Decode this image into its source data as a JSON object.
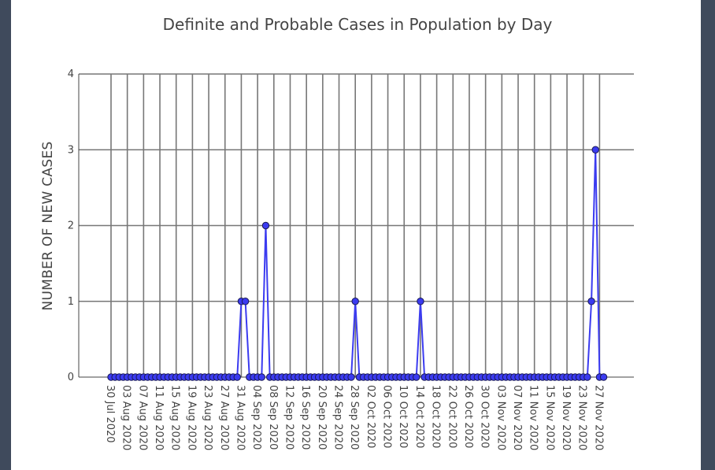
{
  "chart_data": {
    "type": "line",
    "title": "Definite and Probable Cases in Population by Day",
    "xlabel": "",
    "ylabel": "NUMBER OF NEW CASES",
    "ylim": [
      0,
      4
    ],
    "yticks": [
      "0",
      "1",
      "2",
      "3",
      "4"
    ],
    "x_start": "2020-07-30",
    "x_end": "2020-11-28",
    "xticks": [
      {
        "date": "2020-07-30",
        "label": "30 Jul 2020"
      },
      {
        "date": "2020-08-03",
        "label": "03 Aug 2020"
      },
      {
        "date": "2020-08-07",
        "label": "07 Aug 2020"
      },
      {
        "date": "2020-08-11",
        "label": "11 Aug 2020"
      },
      {
        "date": "2020-08-15",
        "label": "15 Aug 2020"
      },
      {
        "date": "2020-08-19",
        "label": "19 Aug 2020"
      },
      {
        "date": "2020-08-23",
        "label": "23 Aug 2020"
      },
      {
        "date": "2020-08-27",
        "label": "27 Aug 2020"
      },
      {
        "date": "2020-08-31",
        "label": "31 Aug 2020"
      },
      {
        "date": "2020-09-04",
        "label": "04 Sep 2020"
      },
      {
        "date": "2020-09-08",
        "label": "08 Sep 2020"
      },
      {
        "date": "2020-09-12",
        "label": "12 Sep 2020"
      },
      {
        "date": "2020-09-16",
        "label": "16 Sep 2020"
      },
      {
        "date": "2020-09-20",
        "label": "20 Sep 2020"
      },
      {
        "date": "2020-09-24",
        "label": "24 Sep 2020"
      },
      {
        "date": "2020-09-28",
        "label": "28 Sep 2020"
      },
      {
        "date": "2020-10-02",
        "label": "02 Oct 2020"
      },
      {
        "date": "2020-10-06",
        "label": "06 Oct 2020"
      },
      {
        "date": "2020-10-10",
        "label": "10 Oct 2020"
      },
      {
        "date": "2020-10-14",
        "label": "14 Oct 2020"
      },
      {
        "date": "2020-10-18",
        "label": "18 Oct 2020"
      },
      {
        "date": "2020-10-22",
        "label": "22 Oct 2020"
      },
      {
        "date": "2020-10-26",
        "label": "26 Oct 2020"
      },
      {
        "date": "2020-10-30",
        "label": "30 Oct 2020"
      },
      {
        "date": "2020-11-03",
        "label": "03 Nov 2020"
      },
      {
        "date": "2020-11-07",
        "label": "07 Nov 2020"
      },
      {
        "date": "2020-11-11",
        "label": "11 Nov 2020"
      },
      {
        "date": "2020-11-15",
        "label": "15 Nov 2020"
      },
      {
        "date": "2020-11-19",
        "label": "19 Nov 2020"
      },
      {
        "date": "2020-11-23",
        "label": "23 Nov 2020"
      },
      {
        "date": "2020-11-27",
        "label": "27 Nov 2020"
      }
    ],
    "series": [
      {
        "color": "#3b3bf0",
        "points": [
          {
            "date": "2020-08-31",
            "value": 1
          },
          {
            "date": "2020-09-01",
            "value": 1
          },
          {
            "date": "2020-09-06",
            "value": 2
          },
          {
            "date": "2020-09-28",
            "value": 1
          },
          {
            "date": "2020-10-14",
            "value": 1
          },
          {
            "date": "2020-11-25",
            "value": 1
          },
          {
            "date": "2020-11-26",
            "value": 3
          }
        ],
        "default_value": 0
      }
    ],
    "grid": true
  }
}
